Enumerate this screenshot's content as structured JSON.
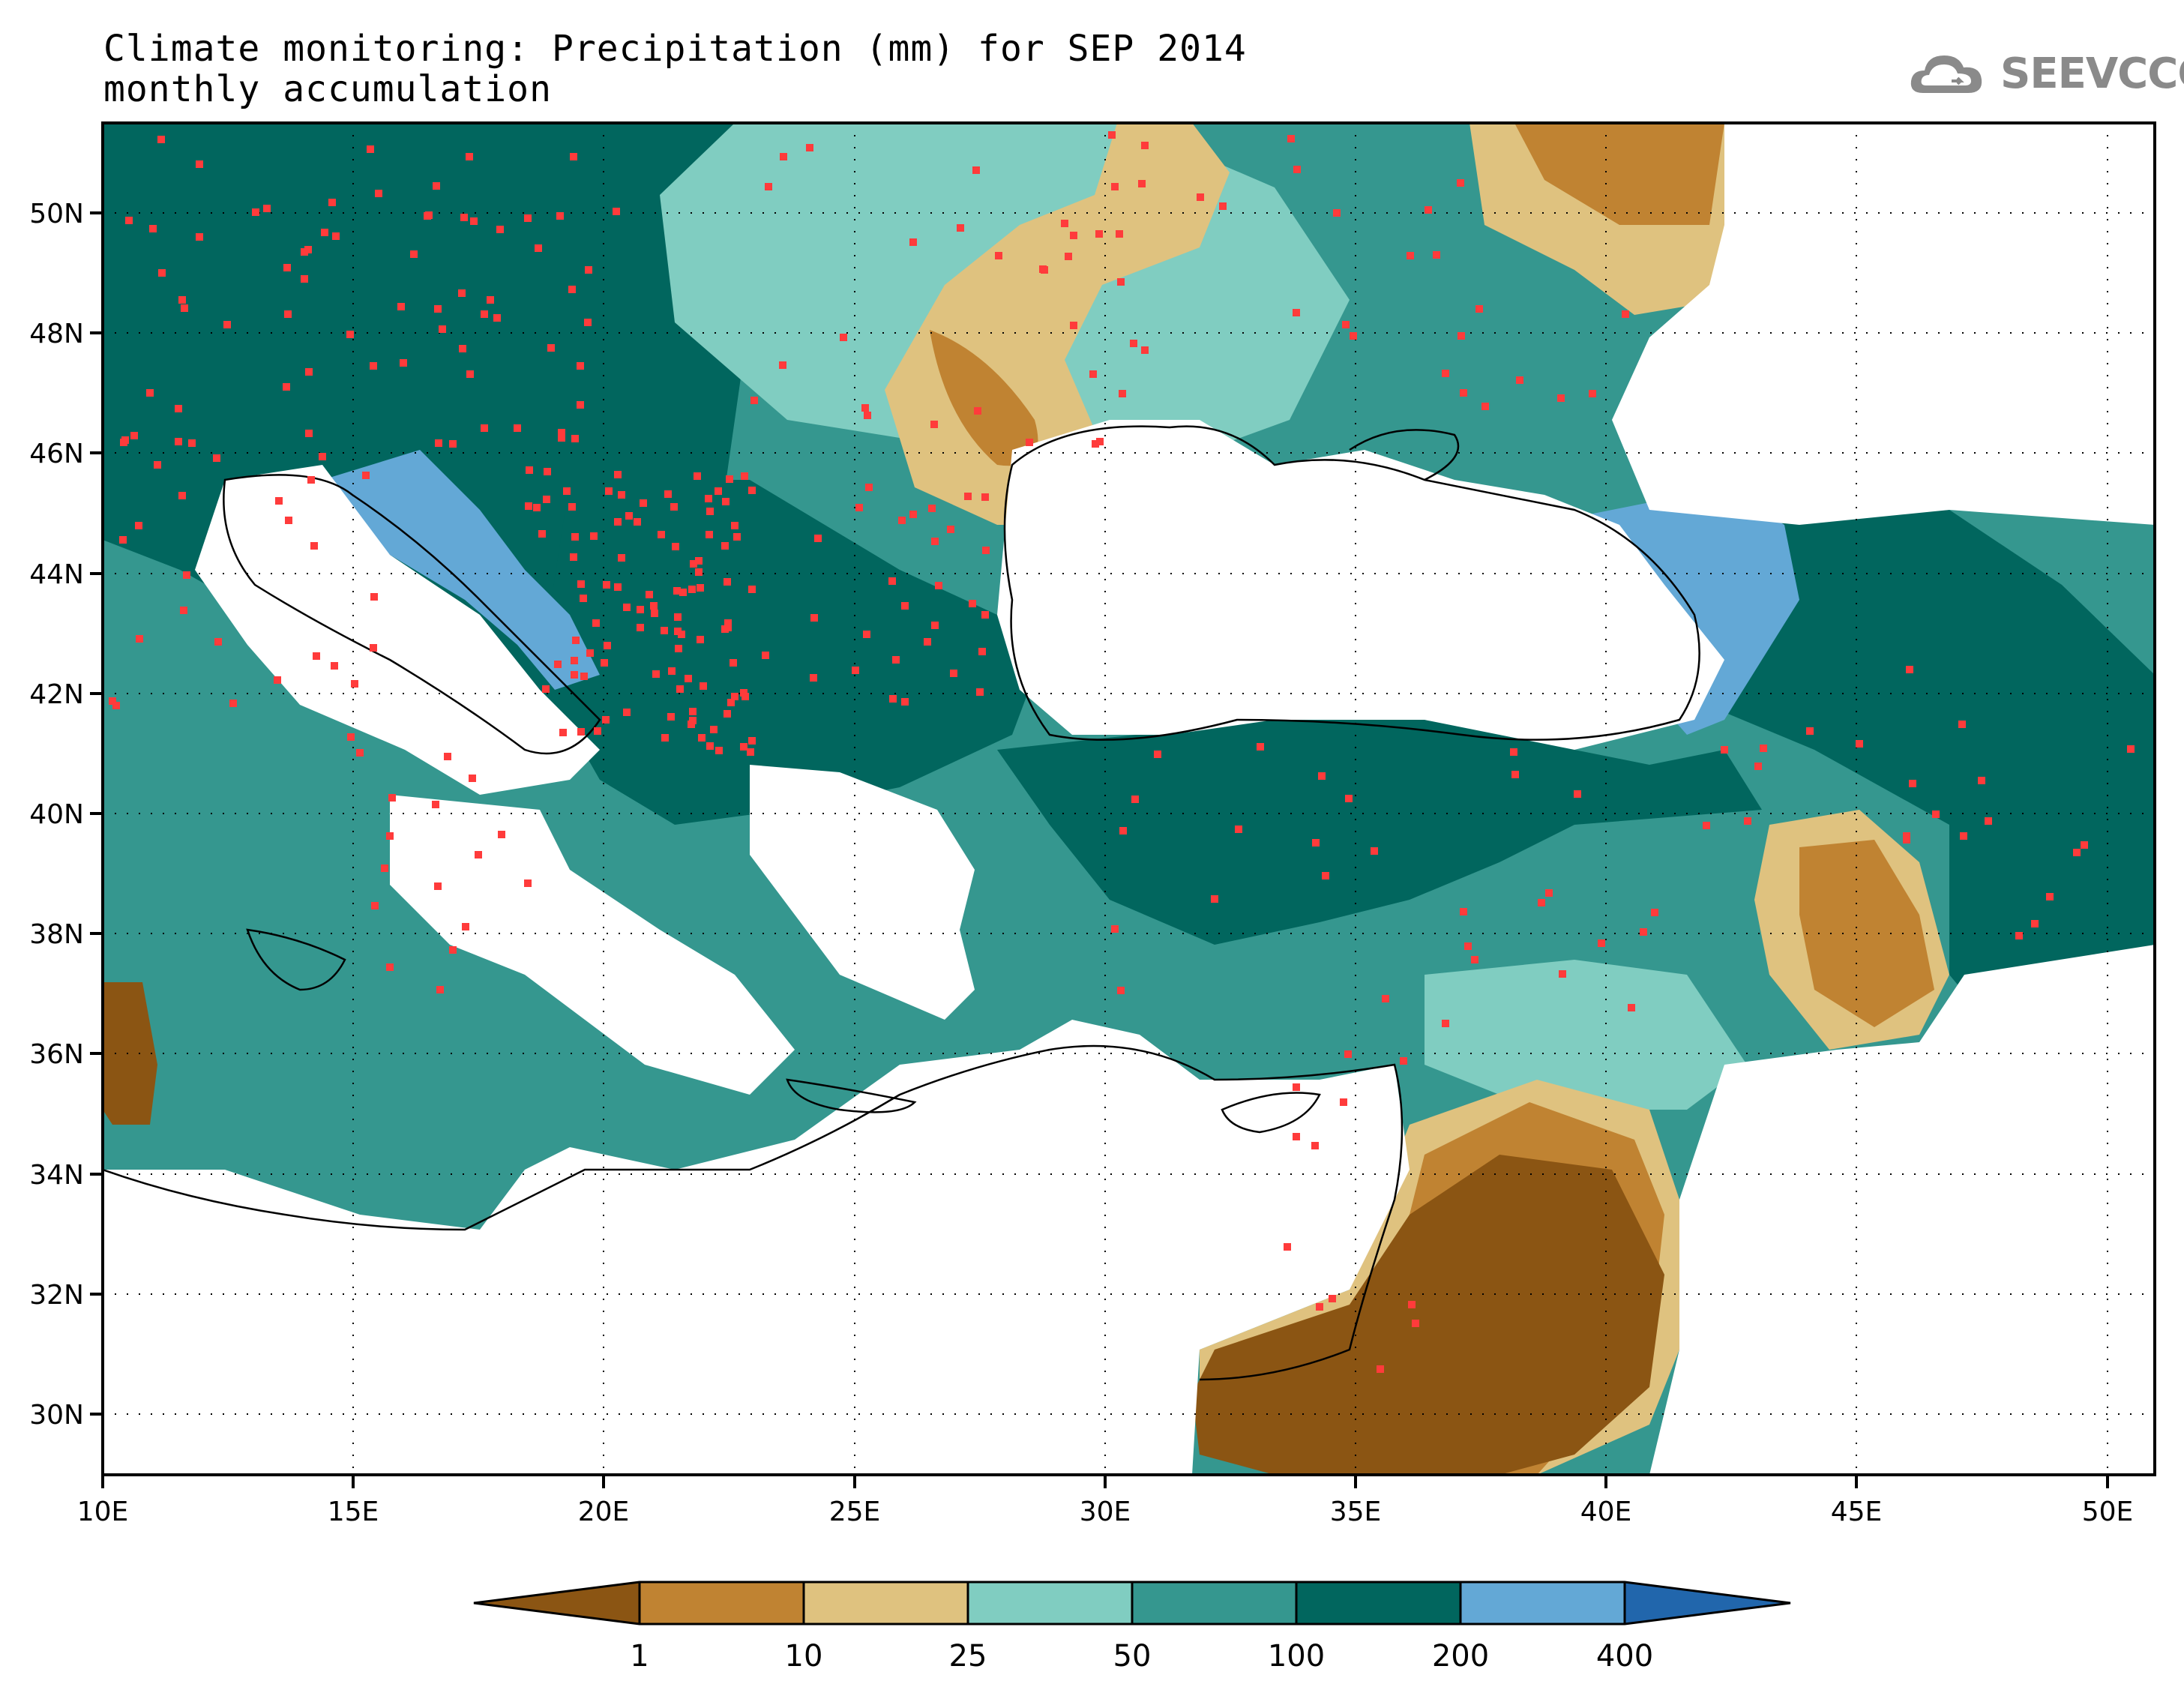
{
  "title": {
    "line1": "Climate monitoring: Precipitation (mm) for SEP 2014",
    "line2": "monthly accumulation"
  },
  "logo": {
    "text": "SEEVCCC",
    "icon": "cloud-icon",
    "color": "#8a8a8a"
  },
  "map": {
    "projection": "lat-lon",
    "lon_range": [
      10,
      51
    ],
    "lat_range": [
      29,
      51.5
    ],
    "grid": "dotted",
    "lon_ticks": [
      "10E",
      "15E",
      "20E",
      "25E",
      "30E",
      "35E",
      "40E",
      "45E",
      "50E"
    ],
    "lat_ticks": [
      "30N",
      "32N",
      "34N",
      "36N",
      "38N",
      "40N",
      "42N",
      "44N",
      "46N",
      "48N",
      "50N"
    ],
    "station_marker_color": "#ff3b3b"
  },
  "colorbar": {
    "labels": [
      "1",
      "10",
      "25",
      "50",
      "100",
      "200",
      "400"
    ],
    "colors": [
      "#8b5513",
      "#c08332",
      "#dfc27f",
      "#80cdc1",
      "#35978f",
      "#01665e",
      "#63a8d6",
      "#2166ac"
    ]
  }
}
